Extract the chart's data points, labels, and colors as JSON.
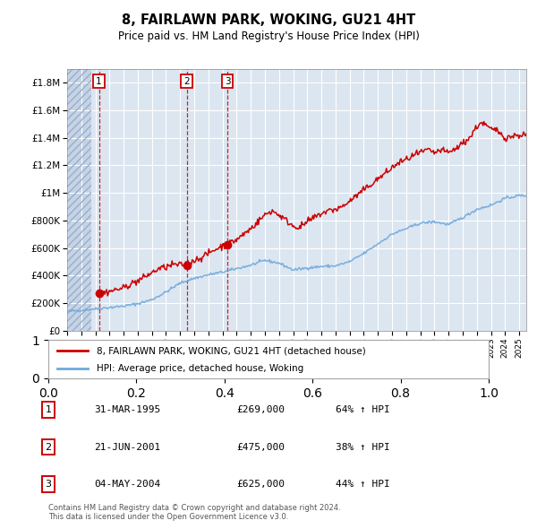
{
  "title": "8, FAIRLAWN PARK, WOKING, GU21 4HT",
  "subtitle": "Price paid vs. HM Land Registry's House Price Index (HPI)",
  "legend_label_red": "8, FAIRLAWN PARK, WOKING, GU21 4HT (detached house)",
  "legend_label_blue": "HPI: Average price, detached house, Woking",
  "footer": "Contains HM Land Registry data © Crown copyright and database right 2024.\nThis data is licensed under the Open Government Licence v3.0.",
  "sale_dates_year": [
    1995.25,
    2001.47,
    2004.34
  ],
  "sale_prices": [
    269000,
    475000,
    625000
  ],
  "sale_labels": [
    "1",
    "2",
    "3"
  ],
  "table_rows": [
    [
      "1",
      "31-MAR-1995",
      "£269,000",
      "64% ↑ HPI"
    ],
    [
      "2",
      "21-JUN-2001",
      "£475,000",
      "38% ↑ HPI"
    ],
    [
      "3",
      "04-MAY-2004",
      "£625,000",
      "44% ↑ HPI"
    ]
  ],
  "hpi_color": "#6fa8dc",
  "price_color": "#cc0000",
  "ylim": [
    0,
    1900000
  ],
  "yticks": [
    0,
    200000,
    400000,
    600000,
    800000,
    1000000,
    1200000,
    1400000,
    1600000,
    1800000
  ],
  "ytick_labels": [
    "£0",
    "£200K",
    "£400K",
    "£600K",
    "£800K",
    "£1M",
    "£1.2M",
    "£1.4M",
    "£1.6M",
    "£1.8M"
  ],
  "background_plot": "#dce6f1",
  "background_hatch": "#c5d3e8",
  "grid_color": "#ffffff",
  "xlim_left": 1993.0,
  "xlim_right": 2025.5,
  "hatch_end": 1994.7
}
